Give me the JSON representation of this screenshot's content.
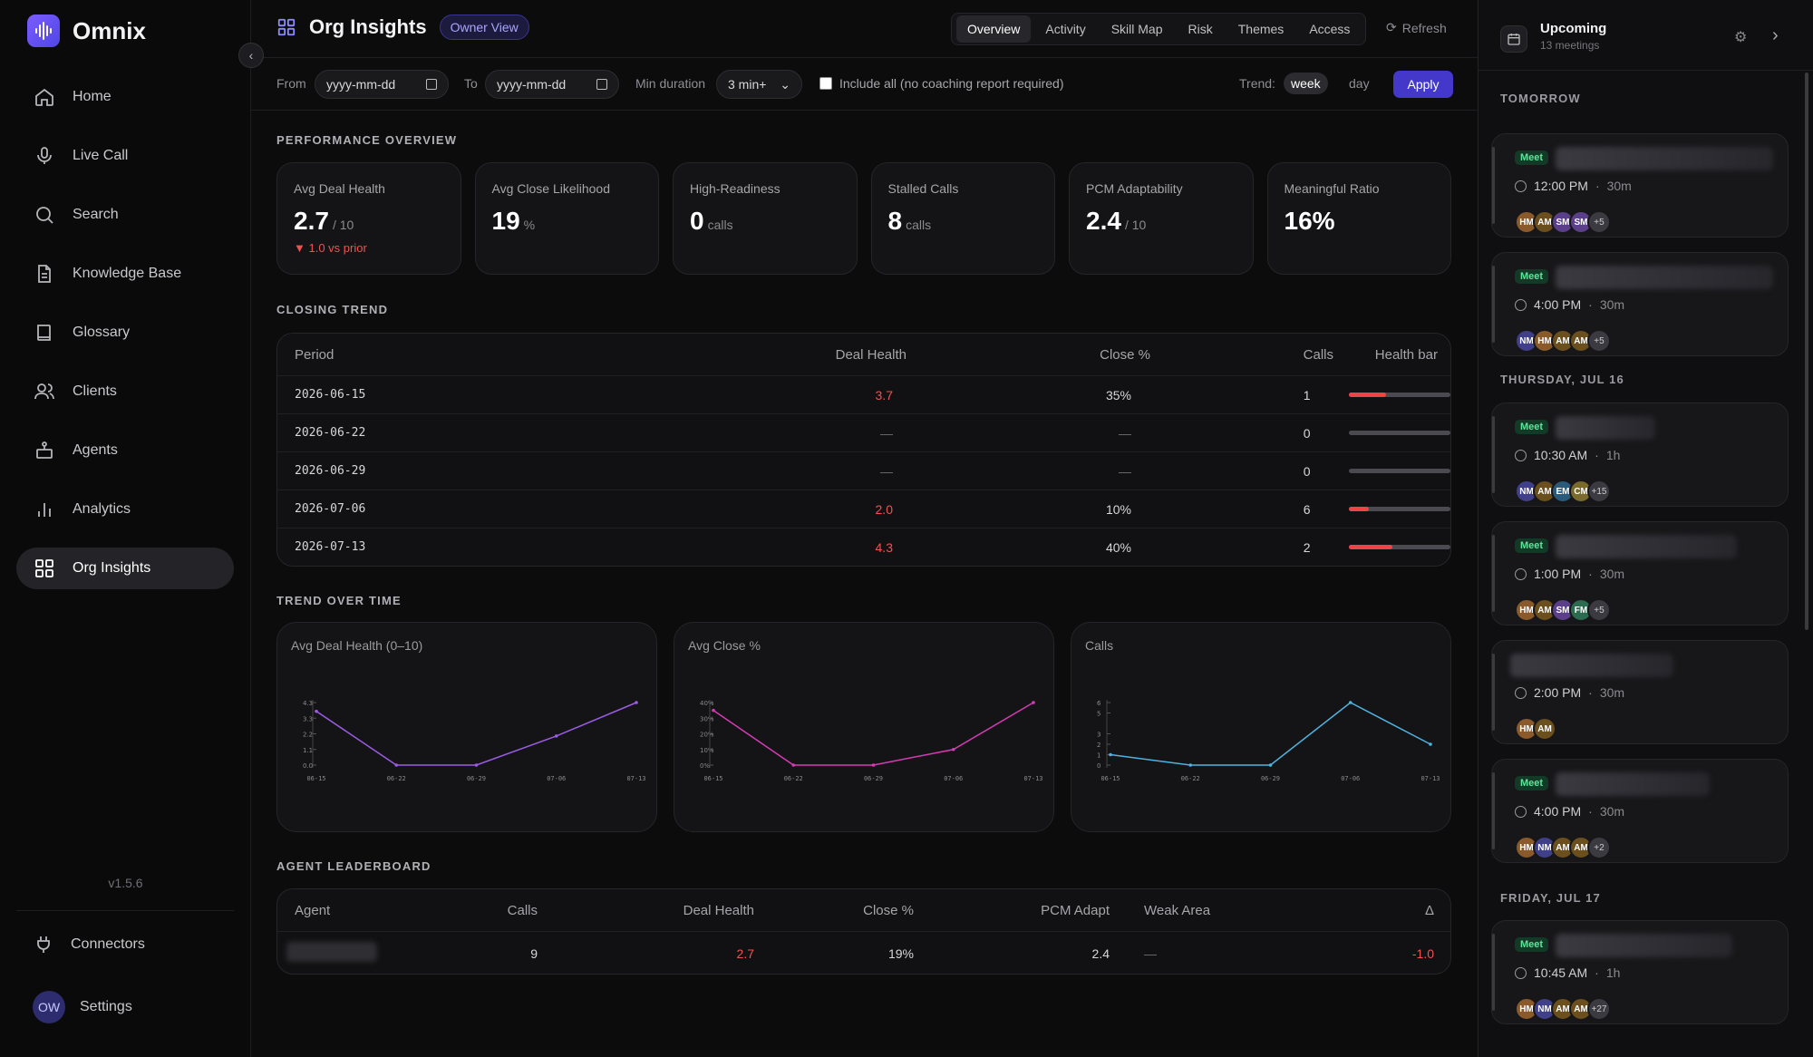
{
  "brand": {
    "name": "Omnix"
  },
  "nav": [
    {
      "label": "Home",
      "icon": "home-icon"
    },
    {
      "label": "Live Call",
      "icon": "microphone-icon"
    },
    {
      "label": "Search",
      "icon": "search-icon"
    },
    {
      "label": "Knowledge Base",
      "icon": "document-icon"
    },
    {
      "label": "Glossary",
      "icon": "book-icon"
    },
    {
      "label": "Clients",
      "icon": "users-icon"
    },
    {
      "label": "Agents",
      "icon": "robot-icon"
    },
    {
      "label": "Analytics",
      "icon": "bar-chart-icon"
    },
    {
      "label": "Org Insights",
      "icon": "grid-icon"
    }
  ],
  "version": "v1.5.6",
  "connectors_label": "Connectors",
  "settings": {
    "label": "Settings",
    "avatar": "OW"
  },
  "header": {
    "title": "Org Insights",
    "badge": "Owner View",
    "tabs": [
      "Overview",
      "Activity",
      "Skill Map",
      "Risk",
      "Themes",
      "Access"
    ],
    "refresh": "Refresh"
  },
  "filters": {
    "from_label": "From",
    "from_value": "yyyy-mm-dd",
    "to_label": "To",
    "to_value": "yyyy-mm-dd",
    "min_label": "Min duration",
    "min_value": "3 min+",
    "include_label": "Include all (no coaching report required)",
    "trend_label": "Trend:",
    "trend_week": "week",
    "trend_day": "day",
    "apply": "Apply"
  },
  "sections": {
    "performance": "PERFORMANCE OVERVIEW",
    "closing": "CLOSING TREND",
    "trend": "TREND OVER TIME",
    "leaderboard": "AGENT LEADERBOARD"
  },
  "cards": [
    {
      "label": "Avg Deal Health",
      "value": "2.7",
      "unit": "/ 10",
      "delta": "▼ 1.0 vs prior"
    },
    {
      "label": "Avg Close Likelihood",
      "value": "19",
      "unit": "%",
      "delta": ""
    },
    {
      "label": "High-Readiness",
      "value": "0",
      "unit": "calls",
      "delta": ""
    },
    {
      "label": "Stalled Calls",
      "value": "8",
      "unit": "calls",
      "delta": ""
    },
    {
      "label": "PCM Adaptability",
      "value": "2.4",
      "unit": "/ 10",
      "delta": ""
    },
    {
      "label": "Meaningful Ratio",
      "value": "16%",
      "unit": "",
      "delta": ""
    }
  ],
  "closing_table": {
    "headers": [
      "Period",
      "Deal Health",
      "Close %",
      "Calls",
      "Health bar"
    ],
    "rows": [
      {
        "period": "2026-06-15",
        "health": "3.7",
        "close": "35%",
        "calls": "1",
        "bar": 0.37
      },
      {
        "period": "2026-06-22",
        "health": "—",
        "close": "—",
        "calls": "0",
        "bar": 0
      },
      {
        "period": "2026-06-29",
        "health": "—",
        "close": "—",
        "calls": "0",
        "bar": 0
      },
      {
        "period": "2026-07-06",
        "health": "2.0",
        "close": "10%",
        "calls": "6",
        "bar": 0.2
      },
      {
        "period": "2026-07-13",
        "health": "4.3",
        "close": "40%",
        "calls": "2",
        "bar": 0.43
      }
    ]
  },
  "chart_data": [
    {
      "type": "line",
      "title": "Avg Deal Health (0–10)",
      "categories": [
        "06-15",
        "06-22",
        "06-29",
        "07-06",
        "07-13"
      ],
      "ticks": [
        "0.0",
        "1.1",
        "2.2",
        "3.3",
        "4.3"
      ],
      "ylim": [
        0,
        4.3
      ],
      "values": [
        3.7,
        0,
        0,
        2.0,
        4.3
      ],
      "color": "#9b5de5"
    },
    {
      "type": "line",
      "title": "Avg Close %",
      "categories": [
        "06-15",
        "06-22",
        "06-29",
        "07-06",
        "07-13"
      ],
      "ticks": [
        "0%",
        "10%",
        "20%",
        "30%",
        "40%"
      ],
      "ylim": [
        0,
        40
      ],
      "values": [
        35,
        0,
        0,
        10,
        40
      ],
      "color": "#d63bb5"
    },
    {
      "type": "line",
      "title": "Calls",
      "categories": [
        "06-15",
        "06-22",
        "06-29",
        "07-06",
        "07-13"
      ],
      "ticks": [
        "0",
        "1",
        "2",
        "3",
        "5",
        "6"
      ],
      "tick_values": [
        0,
        1,
        2,
        3,
        5,
        6
      ],
      "ylim": [
        0,
        6
      ],
      "values": [
        1,
        0,
        0,
        6,
        2
      ],
      "color": "#4fb3e0"
    }
  ],
  "leaderboard": {
    "headers": [
      "Agent",
      "Calls",
      "Deal Health",
      "Close %",
      "PCM Adapt",
      "Weak Area",
      "Δ"
    ],
    "rows": [
      {
        "calls": "9",
        "health": "2.7",
        "close": "19%",
        "pcm": "2.4",
        "weak": "—",
        "delta": "-1.0"
      }
    ]
  },
  "upcoming": {
    "title": "Upcoming",
    "count": "13 meetings",
    "groups": [
      {
        "label": "TOMORROW"
      },
      {
        "label": "THURSDAY, JUL 16"
      },
      {
        "label": "FRIDAY, JUL 17"
      }
    ],
    "meetings": [
      {
        "badge": "Meet",
        "time": "12:00 PM",
        "dur": "30m",
        "avatars": [
          "HM",
          "AM",
          "SM",
          "SM"
        ],
        "more": "+5"
      },
      {
        "badge": "Meet",
        "time": "4:00 PM",
        "dur": "30m",
        "avatars": [
          "NM",
          "HM",
          "AM",
          "AM"
        ],
        "more": "+5"
      },
      {
        "badge": "Meet",
        "time": "10:30 AM",
        "dur": "1h",
        "avatars": [
          "NM",
          "AM",
          "EM",
          "CM"
        ],
        "more": "+15"
      },
      {
        "badge": "Meet",
        "time": "1:00 PM",
        "dur": "30m",
        "avatars": [
          "HM",
          "AM",
          "SM",
          "FM"
        ],
        "more": "+5"
      },
      {
        "badge": "",
        "time": "2:00 PM",
        "dur": "30m",
        "avatars": [
          "HM",
          "AM"
        ],
        "more": ""
      },
      {
        "badge": "Meet",
        "time": "4:00 PM",
        "dur": "30m",
        "avatars": [
          "HM",
          "NM",
          "AM",
          "AM"
        ],
        "more": "+2"
      },
      {
        "badge": "Meet",
        "time": "10:45 AM",
        "dur": "1h",
        "avatars": [
          "HM",
          "NM",
          "AM",
          "AM"
        ],
        "more": "+27"
      }
    ]
  },
  "colors": {
    "accent": "#4338ca",
    "danger": "#ef4444",
    "meet": "#5ee49a"
  }
}
